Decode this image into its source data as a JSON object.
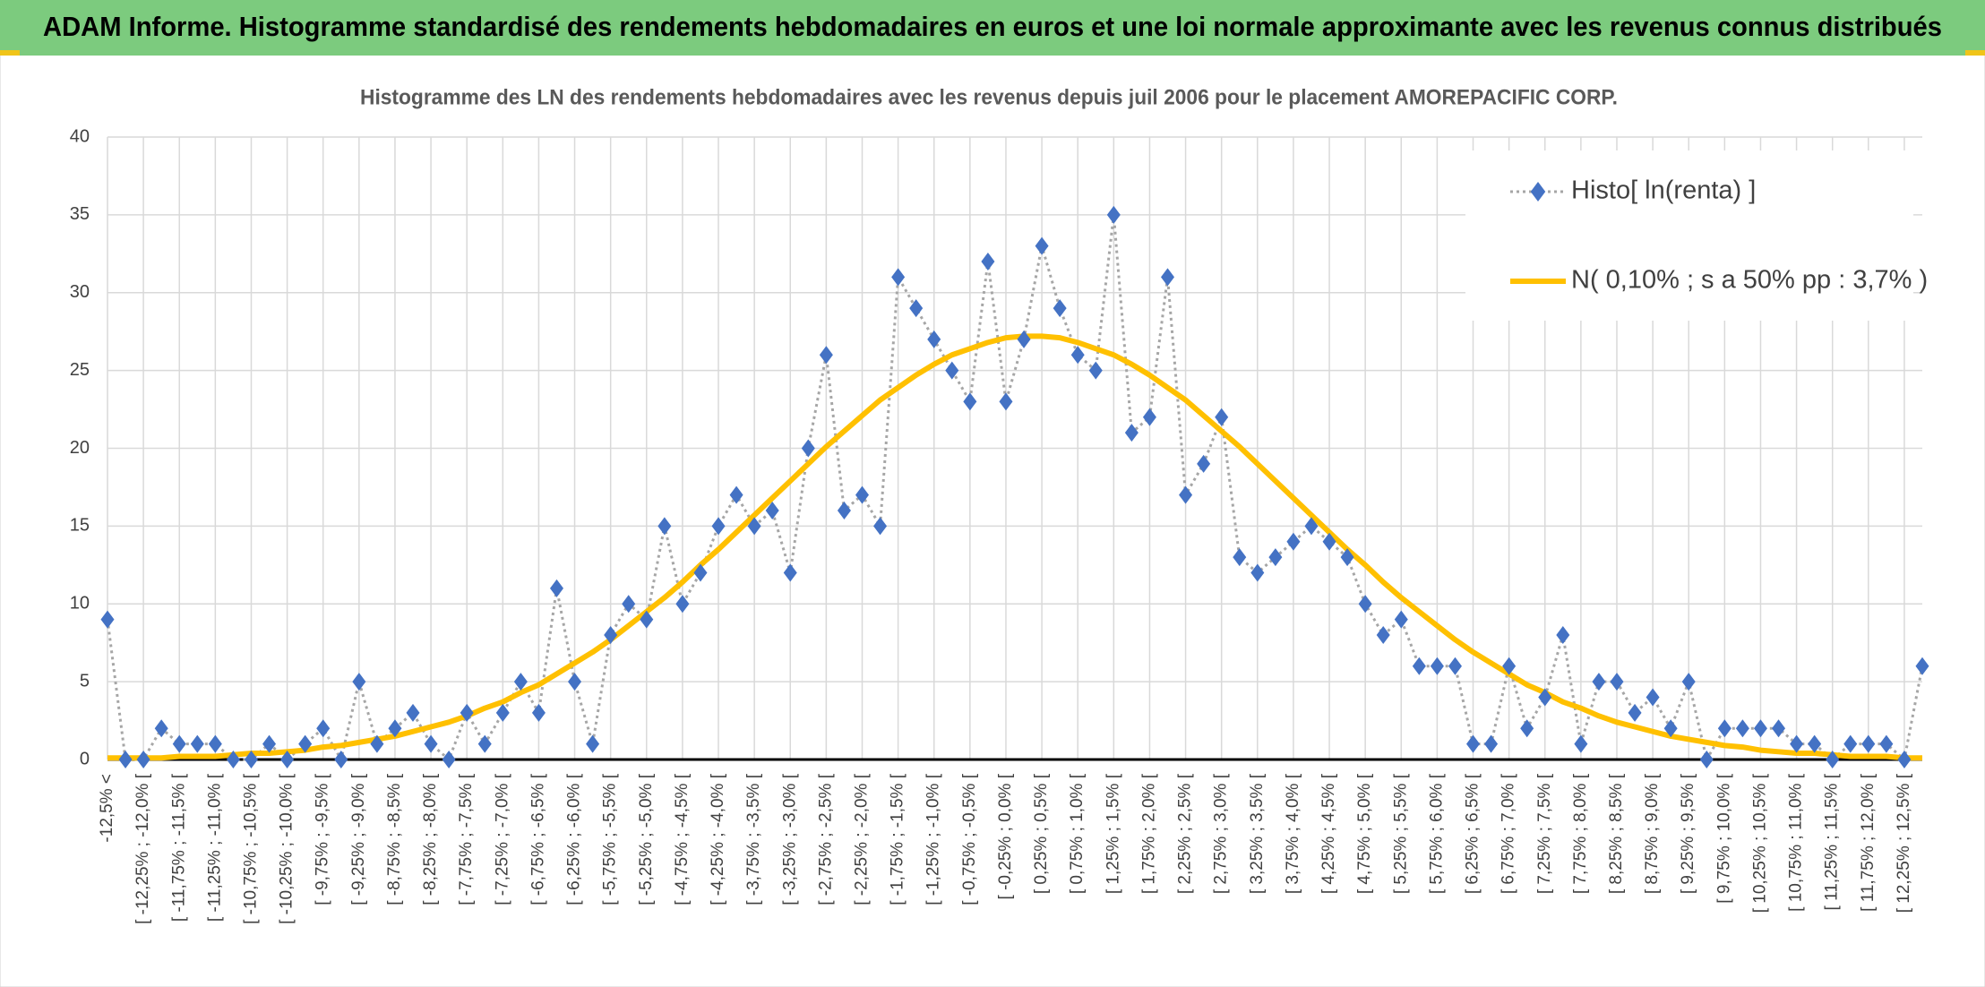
{
  "chart_data": {
    "type": "line",
    "title": "ADAM Informe. Histogramme standardisé des rendements hebdomadaires en euros et une loi normale approximante avec les revenus connus distribués",
    "subtitle": "Histogramme des LN des rendements hebdomadaires avec les revenus depuis juil 2006 pour le placement AMOREPACIFIC CORP.",
    "categories": [
      "-12,5% <",
      null,
      "[ -12,25% ; -12,0% [",
      null,
      "[ -11,75% ; -11,5% [",
      null,
      "[ -11,25% ; -11,0% [",
      null,
      "[ -10,75% ; -10,5% [",
      null,
      "[ -10,25% ; -10,0% [",
      null,
      "[ -9,75% ; -9,5% [",
      null,
      "[ -9,25% ; -9,0% [",
      null,
      "[ -8,75% ; -8,5% [",
      null,
      "[ -8,25% ; -8,0% [",
      null,
      "[ -7,75% ; -7,5% [",
      null,
      "[ -7,25% ; -7,0% [",
      null,
      "[ -6,75% ; -6,5% [",
      null,
      "[ -6,25% ; -6,0% [",
      null,
      "[ -5,75% ; -5,5% [",
      null,
      "[ -5,25% ; -5,0% [",
      null,
      "[ -4,75% ; -4,5% [",
      null,
      "[ -4,25% ; -4,0% [",
      null,
      "[ -3,75% ; -3,5% [",
      null,
      "[ -3,25% ; -3,0% [",
      null,
      "[ -2,75% ; -2,5% [",
      null,
      "[ -2,25% ; -2,0% [",
      null,
      "[ -1,75% ; -1,5% [",
      null,
      "[ -1,25% ; -1,0% [",
      null,
      "[ -0,75% ; -0,5% [",
      null,
      "[ -0,25% ; 0,0% [",
      null,
      "[ 0,25% ; 0,5% [",
      null,
      "[ 0,75% ; 1,0% [",
      null,
      "[ 1,25% ; 1,5% [",
      null,
      "[ 1,75% ; 2,0% [",
      null,
      "[ 2,25% ; 2,5% [",
      null,
      "[ 2,75% ; 3,0% [",
      null,
      "[ 3,25% ; 3,5% [",
      null,
      "[ 3,75% ; 4,0% [",
      null,
      "[ 4,25% ; 4,5% [",
      null,
      "[ 4,75% ; 5,0% [",
      null,
      "[ 5,25% ; 5,5% [",
      null,
      "[ 5,75% ; 6,0% [",
      null,
      "[ 6,25% ; 6,5% [",
      null,
      "[ 6,75% ; 7,0% [",
      null,
      "[ 7,25% ; 7,5% [",
      null,
      "[ 7,75% ; 8,0% [",
      null,
      "[ 8,25% ; 8,5% [",
      null,
      "[ 8,75% ; 9,0% [",
      null,
      "[ 9,25% ; 9,5% [",
      null,
      "[ 9,75% ; 10,0% [",
      null,
      "[ 10,25% ; 10,5% [",
      null,
      "[ 10,75% ; 11,0% [",
      null,
      "[ 11,25% ; 11,5% [",
      null,
      "[ 11,75% ; 12,0% [",
      null,
      "[ 12,25% ; 12,5% [",
      null
    ],
    "series": [
      {
        "name": "Histo[ ln(renta) ]",
        "color": "#4472c4",
        "line_color": "#a6a6a6",
        "line_style": "dotted",
        "marker": "diamond",
        "values": [
          9,
          0,
          0,
          2,
          1,
          1,
          1,
          0,
          0,
          1,
          0,
          1,
          2,
          0,
          5,
          1,
          2,
          3,
          1,
          0,
          3,
          1,
          3,
          5,
          3,
          11,
          5,
          1,
          8,
          10,
          9,
          15,
          10,
          12,
          15,
          17,
          15,
          16,
          12,
          20,
          26,
          16,
          17,
          15,
          31,
          29,
          27,
          25,
          23,
          32,
          23,
          27,
          33,
          29,
          26,
          25,
          35,
          21,
          22,
          31,
          17,
          19,
          22,
          13,
          12,
          13,
          14,
          15,
          14,
          13,
          10,
          8,
          9,
          6,
          6,
          6,
          1,
          1,
          6,
          2,
          4,
          8,
          1,
          5,
          5,
          3,
          4,
          2,
          5,
          0,
          2,
          2,
          2,
          2,
          1,
          1,
          0,
          1,
          1,
          1,
          0,
          6
        ]
      },
      {
        "name": "N( 0,10% ; s a 50% pp : 3,7% )",
        "color": "#ffc000",
        "line_style": "solid",
        "marker": null,
        "values": [
          0.1,
          0.1,
          0.1,
          0.1,
          0.2,
          0.2,
          0.2,
          0.3,
          0.4,
          0.4,
          0.5,
          0.6,
          0.8,
          0.9,
          1.1,
          1.3,
          1.5,
          1.8,
          2.1,
          2.4,
          2.8,
          3.3,
          3.7,
          4.3,
          4.8,
          5.5,
          6.2,
          6.9,
          7.7,
          8.6,
          9.5,
          10.4,
          11.4,
          12.5,
          13.5,
          14.6,
          15.7,
          16.8,
          17.9,
          19.0,
          20.1,
          21.1,
          22.1,
          23.1,
          23.9,
          24.7,
          25.4,
          26.0,
          26.4,
          26.8,
          27.1,
          27.2,
          27.2,
          27.1,
          26.8,
          26.4,
          26.0,
          25.4,
          24.7,
          23.9,
          23.1,
          22.1,
          21.1,
          20.1,
          19.0,
          17.9,
          16.8,
          15.7,
          14.6,
          13.5,
          12.5,
          11.4,
          10.4,
          9.5,
          8.6,
          7.7,
          6.9,
          6.2,
          5.5,
          4.8,
          4.3,
          3.7,
          3.3,
          2.8,
          2.4,
          2.1,
          1.8,
          1.5,
          1.3,
          1.1,
          0.9,
          0.8,
          0.6,
          0.5,
          0.4,
          0.4,
          0.3,
          0.2,
          0.2,
          0.2,
          0.1,
          0.1
        ]
      }
    ],
    "ylim": [
      0,
      40
    ],
    "yticks": [
      0,
      5,
      10,
      15,
      20,
      25,
      30,
      35,
      40
    ],
    "grid": true,
    "legend": "top-right"
  }
}
